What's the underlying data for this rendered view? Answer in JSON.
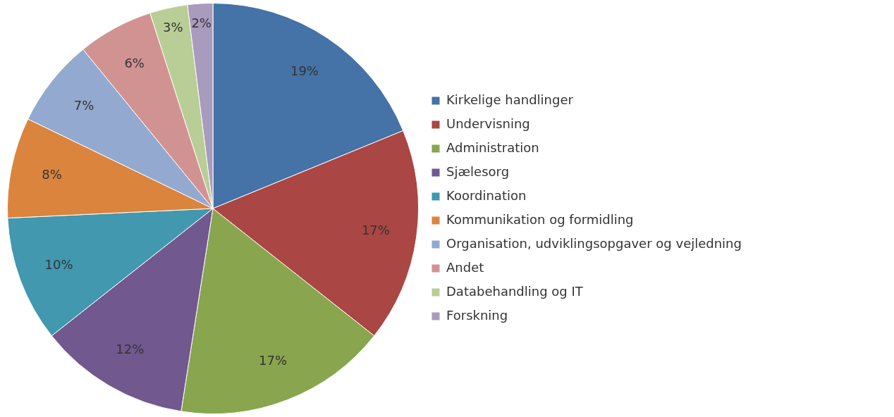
{
  "chart_data": {
    "type": "pie",
    "categories": [
      "Kirkelige handlinger",
      "Undervisning",
      "Administration",
      "Sjælesorg",
      "Koordination",
      "Kommunikation og formidling",
      "Organisation, udviklingsopgaver og vejledning",
      "Andet",
      "Databehandling og IT",
      "Forskning"
    ],
    "values": [
      19,
      17,
      17,
      12,
      10,
      8,
      7,
      6,
      3,
      2
    ],
    "colors": [
      "#4572a7",
      "#aa4643",
      "#89a54e",
      "#71588f",
      "#4198af",
      "#db843d",
      "#93a9cf",
      "#d19392",
      "#b9cd96",
      "#a99bbd"
    ],
    "value_labels": [
      "19%",
      "17%",
      "17%",
      "12%",
      "10%",
      "8%",
      "7%",
      "6%",
      "3%",
      "2%"
    ],
    "legend": "right"
  }
}
